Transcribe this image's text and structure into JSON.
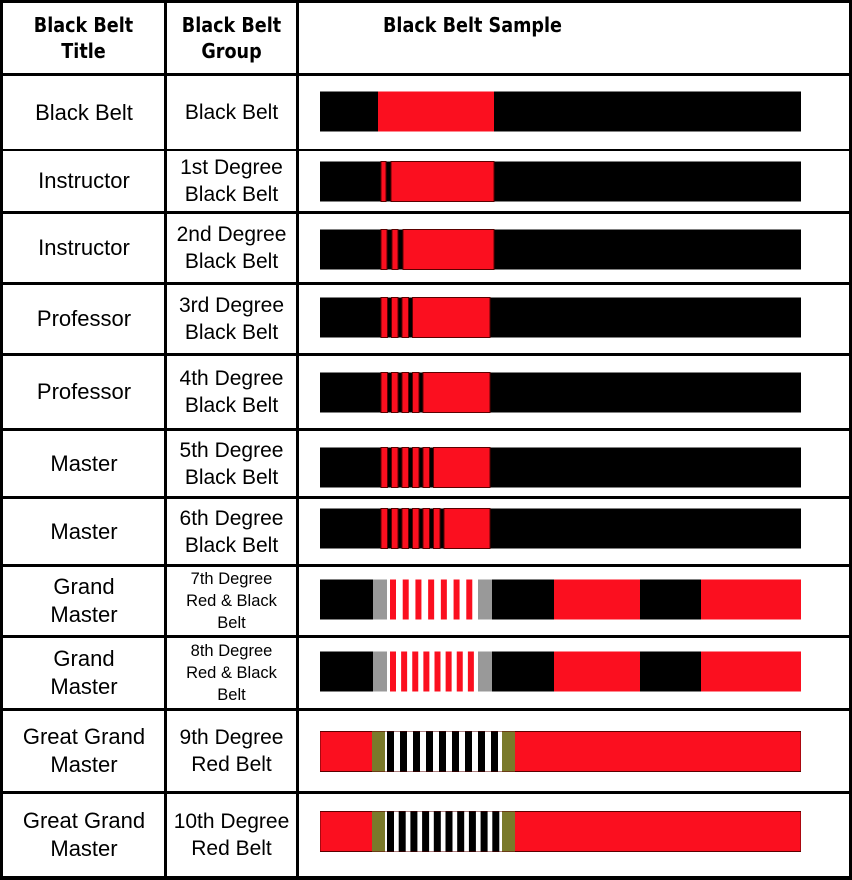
{
  "headers": {
    "title": "Black Belt\nTitle",
    "group": "Black Belt\nGroup",
    "sample": "Black Belt Sample"
  },
  "colors": {
    "black": "#000000",
    "red": "#fb0f1f",
    "white": "#ffffff",
    "gray": "#999999",
    "olive": "#7a7a2a"
  },
  "rows": [
    {
      "title": "Black Belt",
      "group": "Black Belt",
      "belt_type": "black-red-bar",
      "stripes": 0
    },
    {
      "title": "Instructor",
      "group": "1st Degree\nBlack Belt",
      "belt_type": "black-red-bar",
      "stripes": 1
    },
    {
      "title": "Instructor",
      "group": "2nd Degree\nBlack Belt",
      "belt_type": "black-red-bar",
      "stripes": 2
    },
    {
      "title": "Professor",
      "group": "3rd Degree\nBlack Belt",
      "belt_type": "black-red-bar",
      "stripes": 3
    },
    {
      "title": "Professor",
      "group": "4th Degree\nBlack Belt",
      "belt_type": "black-red-bar",
      "stripes": 4
    },
    {
      "title": "Master",
      "group": "5th Degree\nBlack Belt",
      "belt_type": "black-red-bar",
      "stripes": 5
    },
    {
      "title": "Master",
      "group": "6th Degree\nBlack Belt",
      "belt_type": "black-red-bar",
      "stripes": 6
    },
    {
      "title": "Grand\nMaster",
      "group": "7th Degree\nRed & Black\nBelt",
      "belt_type": "red-black-block",
      "stripes": 7
    },
    {
      "title": "Grand\nMaster",
      "group": "8th Degree\nRed & Black\nBelt",
      "belt_type": "red-black-block",
      "stripes": 8
    },
    {
      "title": "Great Grand\nMaster",
      "group": "9th Degree\nRed Belt",
      "belt_type": "red",
      "stripes": 9
    },
    {
      "title": "Great Grand\nMaster",
      "group": "10th Degree\nRed Belt",
      "belt_type": "red",
      "stripes": 10
    }
  ]
}
